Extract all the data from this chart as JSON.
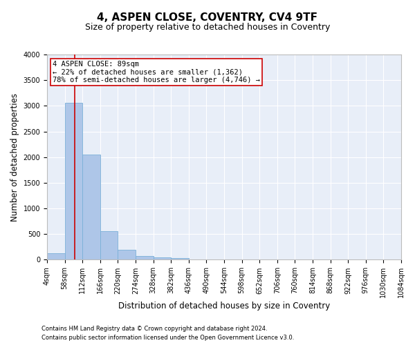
{
  "title": "4, ASPEN CLOSE, COVENTRY, CV4 9TF",
  "subtitle": "Size of property relative to detached houses in Coventry",
  "xlabel": "Distribution of detached houses by size in Coventry",
  "ylabel": "Number of detached properties",
  "bar_color": "#aec6e8",
  "bar_edge_color": "#7ab0d8",
  "background_color": "#e8eef8",
  "grid_color": "#ffffff",
  "bin_edges": [
    4,
    58,
    112,
    166,
    220,
    274,
    328,
    382,
    436,
    490,
    544,
    598,
    652,
    706,
    760,
    814,
    868,
    922,
    976,
    1030,
    1084
  ],
  "bar_heights": [
    130,
    3060,
    2050,
    560,
    190,
    70,
    50,
    30,
    0,
    0,
    0,
    0,
    0,
    0,
    0,
    0,
    0,
    0,
    0,
    0
  ],
  "property_size": 89,
  "vline_color": "#cc0000",
  "annotation_text": "4 ASPEN CLOSE: 89sqm\n← 22% of detached houses are smaller (1,362)\n78% of semi-detached houses are larger (4,746) →",
  "annotation_box_color": "#cc0000",
  "ylim": [
    0,
    4000
  ],
  "yticks": [
    0,
    500,
    1000,
    1500,
    2000,
    2500,
    3000,
    3500,
    4000
  ],
  "footnote1": "Contains HM Land Registry data © Crown copyright and database right 2024.",
  "footnote2": "Contains public sector information licensed under the Open Government Licence v3.0.",
  "title_fontsize": 11,
  "subtitle_fontsize": 9,
  "tick_fontsize": 7,
  "label_fontsize": 8.5,
  "footnote_fontsize": 6
}
